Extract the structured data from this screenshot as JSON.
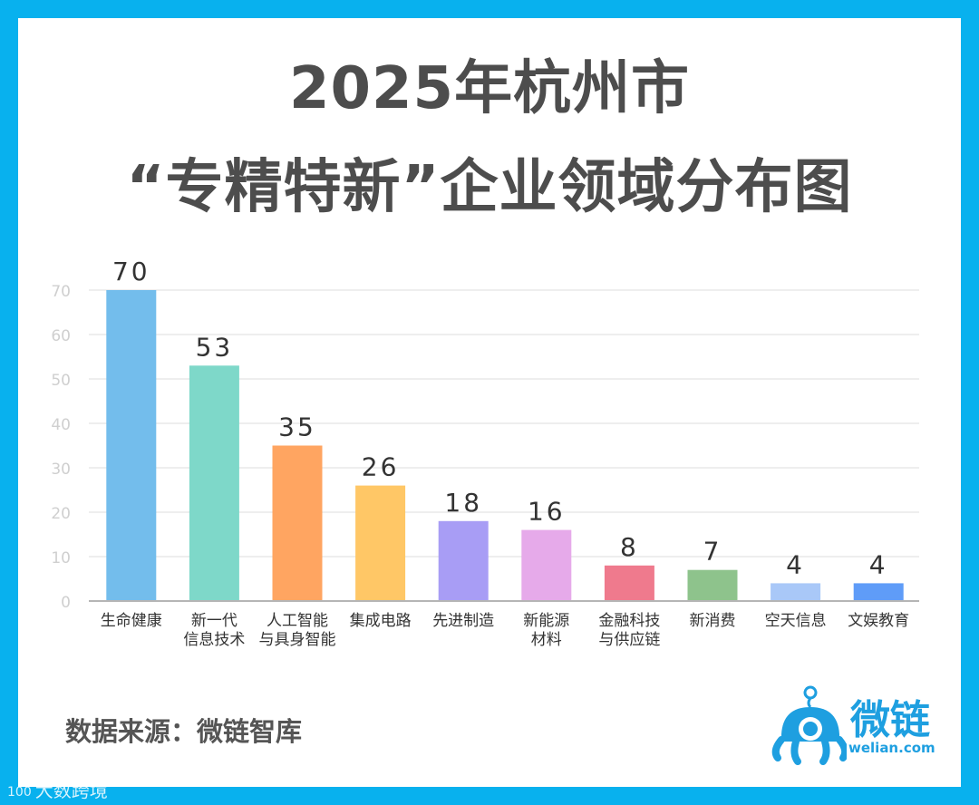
{
  "title_line1": "2025年杭州市",
  "title_line2": "“专精特新”企业领域分布图",
  "source": "数据来源：微链智库",
  "logo": {
    "name": "微链",
    "sub": "welian.com"
  },
  "watermark": {
    "badge": "100",
    "text": "大数跨境"
  },
  "colors": {
    "frame": "#08b1ee",
    "title": "#4d4d4d",
    "grid": "#dcdcdc",
    "axis_text": "#cfcfcf",
    "label_text": "#333333",
    "logo": "#1e9fe0"
  },
  "chart_data": {
    "type": "bar",
    "categories": [
      [
        "生命健康"
      ],
      [
        "新一代",
        "信息技术"
      ],
      [
        "人工智能",
        "与具身智能"
      ],
      [
        "集成电路"
      ],
      [
        "先进制造"
      ],
      [
        "新能源",
        "材料"
      ],
      [
        "金融科技",
        "与供应链"
      ],
      [
        "新消费"
      ],
      [
        "空天信息"
      ],
      [
        "文娱教育"
      ]
    ],
    "values": [
      70,
      53,
      35,
      26,
      18,
      16,
      8,
      7,
      4,
      4
    ],
    "data_labels": [
      "70",
      "53",
      "35",
      "26",
      "18",
      "16",
      "8",
      "7",
      "4",
      "4"
    ],
    "bar_colors": [
      "#73bdec",
      "#7ed8c9",
      "#ffa561",
      "#ffc766",
      "#a89df5",
      "#e6aaea",
      "#ef7a8d",
      "#8ec38c",
      "#a9c8f8",
      "#5f9cf8"
    ],
    "yticks": [
      "0",
      "10",
      "20",
      "30",
      "40",
      "50",
      "60",
      "70"
    ],
    "ylim": [
      0,
      70
    ],
    "grid": true,
    "legend": "none"
  }
}
